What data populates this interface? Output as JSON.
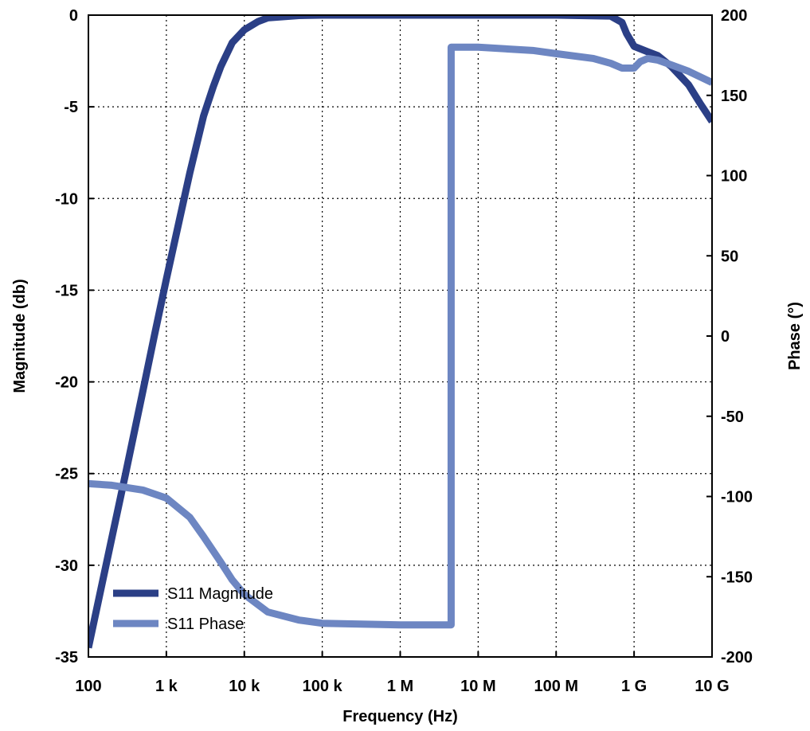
{
  "chart_data": {
    "type": "line",
    "title": "",
    "xlabel": "Frequency (Hz)",
    "ylabel": "Magnitude (db)",
    "y2label": "Phase (°)",
    "xscale": "log",
    "xlim": [
      100,
      10000000000
    ],
    "ylim": [
      -35,
      0
    ],
    "y2lim": [
      -200,
      200
    ],
    "grid": true,
    "legend_position": "bottom-left",
    "x_ticks": [
      {
        "value": 100,
        "label": "100"
      },
      {
        "value": 1000,
        "label": "1 k"
      },
      {
        "value": 10000,
        "label": "10 k"
      },
      {
        "value": 100000,
        "label": "100 k"
      },
      {
        "value": 1000000,
        "label": "1 M"
      },
      {
        "value": 10000000,
        "label": "10 M"
      },
      {
        "value": 100000000,
        "label": "100 M"
      },
      {
        "value": 1000000000,
        "label": "1 G"
      },
      {
        "value": 10000000000,
        "label": "10 G"
      }
    ],
    "y_ticks": [
      {
        "value": 0,
        "label": "0"
      },
      {
        "value": -5,
        "label": "-5"
      },
      {
        "value": -10,
        "label": "-10"
      },
      {
        "value": -15,
        "label": "-15"
      },
      {
        "value": -20,
        "label": "-20"
      },
      {
        "value": -25,
        "label": "-25"
      },
      {
        "value": -30,
        "label": "-30"
      },
      {
        "value": -35,
        "label": "-35"
      }
    ],
    "y2_ticks": [
      {
        "value": 200,
        "label": "200"
      },
      {
        "value": 150,
        "label": "150"
      },
      {
        "value": 100,
        "label": "100"
      },
      {
        "value": 50,
        "label": "50"
      },
      {
        "value": 0,
        "label": "0"
      },
      {
        "value": -50,
        "label": "-50"
      },
      {
        "value": -100,
        "label": "-100"
      },
      {
        "value": -150,
        "label": "-150"
      },
      {
        "value": -200,
        "label": "-200"
      }
    ],
    "series": [
      {
        "name": "S11 Magnitude",
        "axis": "left",
        "color": "#2b3f86",
        "points": [
          [
            100,
            -34.5
          ],
          [
            200,
            -28.5
          ],
          [
            300,
            -25.0
          ],
          [
            500,
            -20.5
          ],
          [
            700,
            -17.5
          ],
          [
            1000,
            -14.4
          ],
          [
            1500,
            -11.0
          ],
          [
            2000,
            -8.6
          ],
          [
            3000,
            -5.5
          ],
          [
            4000,
            -3.9
          ],
          [
            5000,
            -2.8
          ],
          [
            7000,
            -1.5
          ],
          [
            10000,
            -0.8
          ],
          [
            15000,
            -0.35
          ],
          [
            20000,
            -0.15
          ],
          [
            50000,
            -0.02
          ],
          [
            100000,
            0
          ],
          [
            1000000,
            0
          ],
          [
            10000000,
            0
          ],
          [
            100000000,
            0
          ],
          [
            500000000,
            -0.05
          ],
          [
            700000000,
            -0.4
          ],
          [
            800000000,
            -1.0
          ],
          [
            1000000000,
            -1.7
          ],
          [
            1500000000,
            -2.0
          ],
          [
            2000000000,
            -2.2
          ],
          [
            3000000000,
            -2.8
          ],
          [
            5000000000,
            -3.8
          ],
          [
            7000000000,
            -4.8
          ],
          [
            10000000000,
            -5.8
          ]
        ]
      },
      {
        "name": "S11 Phase",
        "axis": "right",
        "color": "#6d86c2",
        "points": [
          [
            100,
            -92
          ],
          [
            200,
            -93
          ],
          [
            500,
            -96
          ],
          [
            1000,
            -101
          ],
          [
            2000,
            -113
          ],
          [
            3000,
            -125
          ],
          [
            5000,
            -141
          ],
          [
            7000,
            -152
          ],
          [
            10000,
            -161
          ],
          [
            20000,
            -172
          ],
          [
            50000,
            -177
          ],
          [
            100000,
            -179
          ],
          [
            1000000,
            -180
          ],
          [
            4500000,
            -180
          ],
          [
            4500000,
            180
          ],
          [
            10000000,
            180
          ],
          [
            50000000,
            178
          ],
          [
            100000000,
            176
          ],
          [
            300000000,
            173
          ],
          [
            500000000,
            170
          ],
          [
            700000000,
            167
          ],
          [
            1000000000,
            167
          ],
          [
            1200000000,
            171
          ],
          [
            1500000000,
            173
          ],
          [
            2000000000,
            172
          ],
          [
            3000000000,
            169
          ],
          [
            5000000000,
            165
          ],
          [
            10000000000,
            158
          ]
        ]
      }
    ]
  }
}
